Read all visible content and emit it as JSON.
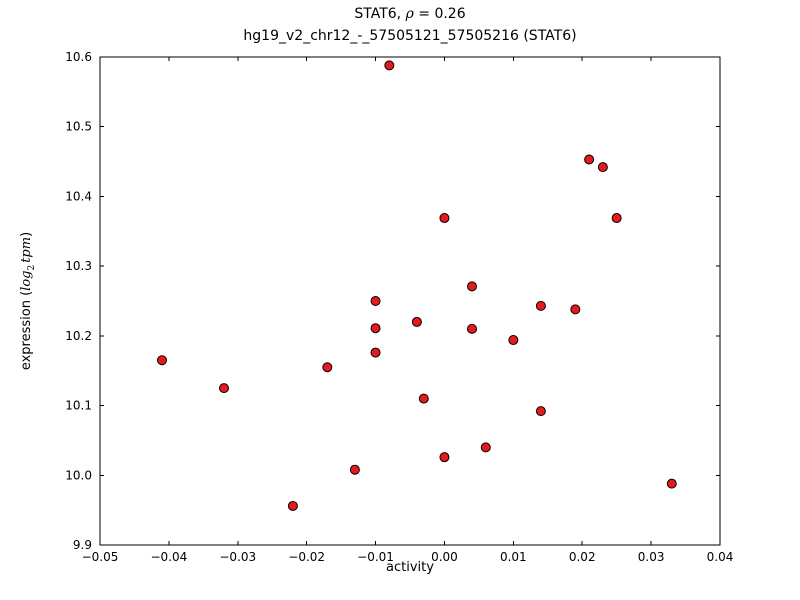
{
  "chart_data": {
    "type": "scatter",
    "title": "STAT6, ρ = 0.26",
    "subtitle": "hg19_v2_chr12_-_57505121_57505216 (STAT6)",
    "title_parts": {
      "name": "STAT6, ",
      "rho": "ρ",
      "rest": " = 0.26"
    },
    "xlabel": "activity",
    "ylabel": "expression (log₂ tpm)",
    "ylabel_parts": {
      "prefix": "expression (",
      "log": "log",
      "sub": "2",
      "var": "tpm",
      "suffix": ")"
    },
    "xlim": [
      -0.05,
      0.04
    ],
    "ylim": [
      9.9,
      10.6
    ],
    "x_ticks": [
      -0.05,
      -0.04,
      -0.03,
      -0.02,
      -0.01,
      0.0,
      0.01,
      0.02,
      0.03,
      0.04
    ],
    "x_tick_labels": [
      "−0.05",
      "−0.04",
      "−0.03",
      "−0.02",
      "−0.01",
      "0.00",
      "0.01",
      "0.02",
      "0.03",
      "0.04"
    ],
    "y_ticks": [
      9.9,
      10.0,
      10.1,
      10.2,
      10.3,
      10.4,
      10.5,
      10.6
    ],
    "y_tick_labels": [
      "9.9",
      "10.0",
      "10.1",
      "10.2",
      "10.3",
      "10.4",
      "10.5",
      "10.6"
    ],
    "grid": false,
    "legend": "none",
    "marker": {
      "fill": "#e41a1c",
      "edge": "#000000",
      "radius": 4.5
    },
    "points": [
      [
        -0.041,
        10.165
      ],
      [
        -0.032,
        10.125
      ],
      [
        -0.022,
        9.956
      ],
      [
        -0.017,
        10.155
      ],
      [
        -0.013,
        10.008
      ],
      [
        -0.01,
        10.25
      ],
      [
        -0.01,
        10.211
      ],
      [
        -0.01,
        10.176
      ],
      [
        -0.008,
        10.588
      ],
      [
        -0.004,
        10.22
      ],
      [
        -0.003,
        10.11
      ],
      [
        0.0,
        10.369
      ],
      [
        0.0,
        10.026
      ],
      [
        0.004,
        10.271
      ],
      [
        0.004,
        10.21
      ],
      [
        0.006,
        10.04
      ],
      [
        0.01,
        10.194
      ],
      [
        0.014,
        10.243
      ],
      [
        0.014,
        10.092
      ],
      [
        0.019,
        10.238
      ],
      [
        0.021,
        10.453
      ],
      [
        0.023,
        10.442
      ],
      [
        0.025,
        10.369
      ],
      [
        0.033,
        9.988
      ]
    ]
  }
}
